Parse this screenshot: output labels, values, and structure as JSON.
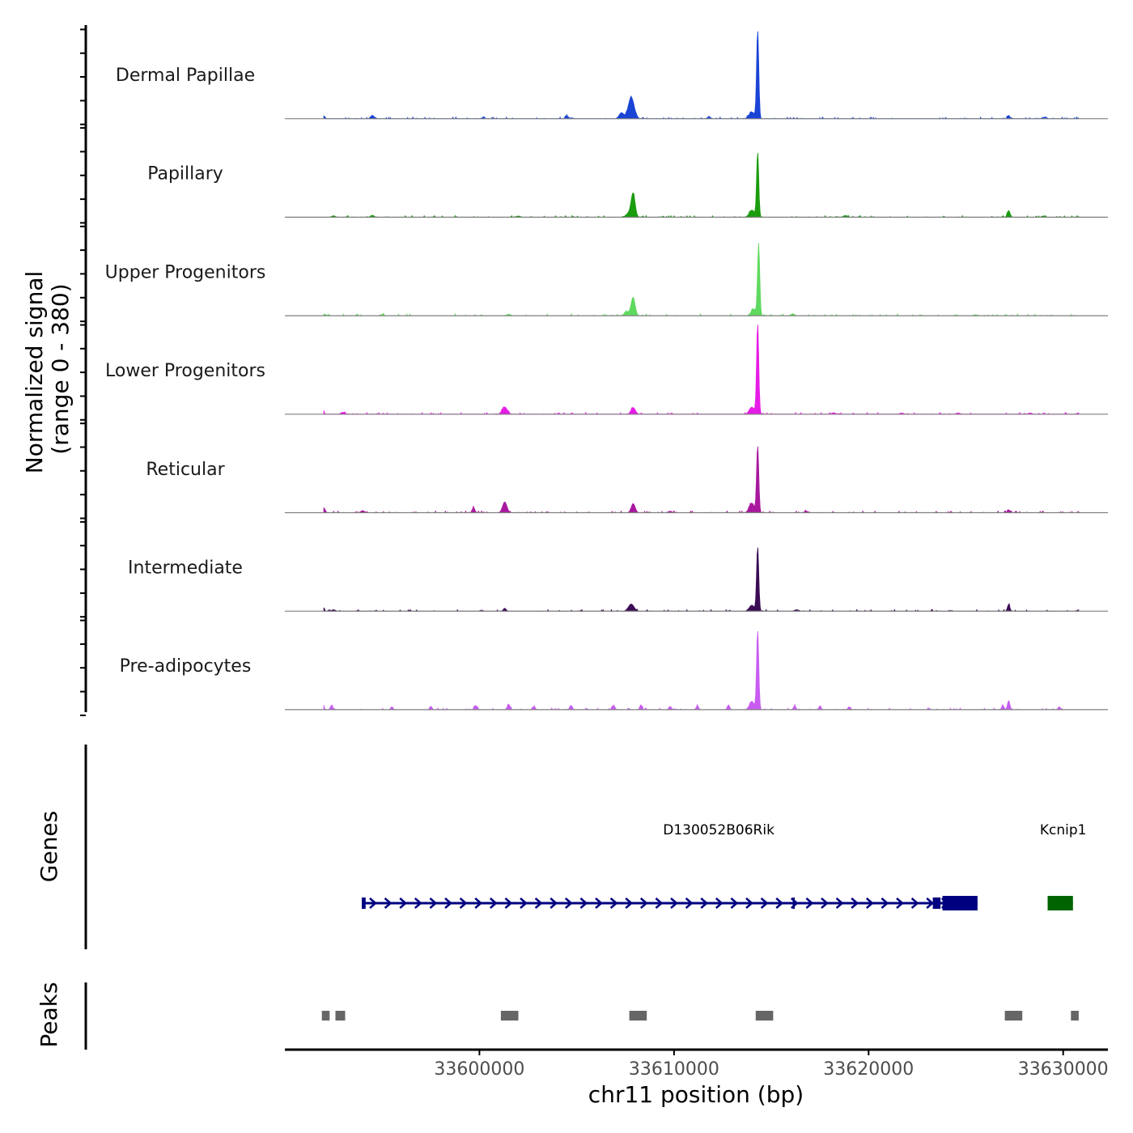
{
  "chart_data": {
    "type": "area",
    "title": "",
    "chromosome": "chr11",
    "xlabel": "chr11 position (bp)",
    "ylabel": "Normalized signal",
    "ylabel_range": "(range 0 - 380)",
    "xlim": [
      33590000,
      33632300
    ],
    "ylim": [
      0,
      380
    ],
    "x_ticks": [
      33600000,
      33610000,
      33620000,
      33630000
    ],
    "x_tick_labels": [
      "33600000",
      "33610000",
      "33620000",
      "33630000"
    ],
    "genes_label": "Genes",
    "peaks_label": "Peaks",
    "series": [
      {
        "name": "Dermal Papillae",
        "color": "#1a44d6",
        "peaks": [
          [
            33592000,
            12,
            60
          ],
          [
            33594500,
            14,
            90
          ],
          [
            33600200,
            6,
            80
          ],
          [
            33604500,
            10,
            90
          ],
          [
            33607800,
            90,
            150
          ],
          [
            33607300,
            25,
            120
          ],
          [
            33611800,
            8,
            80
          ],
          [
            33614300,
            370,
            55
          ],
          [
            33614000,
            28,
            140
          ],
          [
            33627200,
            14,
            60
          ],
          [
            33629000,
            6,
            90
          ]
        ]
      },
      {
        "name": "Papillary",
        "color": "#1a9c0e",
        "peaks": [
          [
            33592500,
            6,
            90
          ],
          [
            33594500,
            8,
            90
          ],
          [
            33602000,
            5,
            100
          ],
          [
            33607900,
            95,
            100
          ],
          [
            33607700,
            18,
            150
          ],
          [
            33614300,
            270,
            55
          ],
          [
            33614000,
            30,
            130
          ],
          [
            33618800,
            7,
            100
          ],
          [
            33627200,
            28,
            70
          ],
          [
            33629000,
            5,
            90
          ]
        ]
      },
      {
        "name": "Upper Progenitors",
        "color": "#5fd95f",
        "peaks": [
          [
            33592000,
            6,
            100
          ],
          [
            33595000,
            5,
            100
          ],
          [
            33601500,
            6,
            100
          ],
          [
            33607900,
            75,
            100
          ],
          [
            33607600,
            15,
            150
          ],
          [
            33614350,
            300,
            55
          ],
          [
            33614100,
            28,
            130
          ],
          [
            33616100,
            8,
            90
          ],
          [
            33625500,
            4,
            100
          ]
        ]
      },
      {
        "name": "Lower Progenitors",
        "color": "#e61be6",
        "peaks": [
          [
            33591950,
            25,
            50
          ],
          [
            33593000,
            8,
            100
          ],
          [
            33601300,
            30,
            130
          ],
          [
            33607900,
            28,
            110
          ],
          [
            33614300,
            380,
            55
          ],
          [
            33614000,
            30,
            130
          ],
          [
            33618200,
            6,
            100
          ],
          [
            33621700,
            5,
            100
          ],
          [
            33624600,
            5,
            100
          ],
          [
            33628300,
            5,
            100
          ],
          [
            33630800,
            5,
            100
          ]
        ]
      },
      {
        "name": "Reticular",
        "color": "#a8189e",
        "peaks": [
          [
            33592000,
            20,
            70
          ],
          [
            33594000,
            8,
            100
          ],
          [
            33599700,
            22,
            60
          ],
          [
            33601300,
            45,
            110
          ],
          [
            33607900,
            38,
            100
          ],
          [
            33609800,
            6,
            100
          ],
          [
            33614300,
            280,
            55
          ],
          [
            33614000,
            40,
            130
          ],
          [
            33616800,
            6,
            100
          ],
          [
            33627200,
            12,
            60
          ],
          [
            33630900,
            5,
            100
          ]
        ]
      },
      {
        "name": "Intermediate",
        "color": "#3a0c54",
        "peaks": [
          [
            33591950,
            22,
            50
          ],
          [
            33592500,
            6,
            90
          ],
          [
            33601300,
            12,
            70
          ],
          [
            33607800,
            30,
            140
          ],
          [
            33614300,
            270,
            55
          ],
          [
            33614000,
            25,
            130
          ],
          [
            33616300,
            6,
            100
          ],
          [
            33627200,
            28,
            60
          ],
          [
            33630800,
            5,
            100
          ]
        ]
      },
      {
        "name": "Pre-adipocytes",
        "color": "#c85cf2",
        "peaks": [
          [
            33591950,
            32,
            50
          ],
          [
            33592400,
            18,
            60
          ],
          [
            33595500,
            12,
            60
          ],
          [
            33597500,
            14,
            60
          ],
          [
            33599800,
            18,
            70
          ],
          [
            33601500,
            22,
            70
          ],
          [
            33602800,
            14,
            60
          ],
          [
            33604700,
            18,
            60
          ],
          [
            33606900,
            18,
            60
          ],
          [
            33608300,
            20,
            60
          ],
          [
            33609800,
            14,
            60
          ],
          [
            33611200,
            16,
            60
          ],
          [
            33612800,
            20,
            60
          ],
          [
            33614300,
            330,
            55
          ],
          [
            33614000,
            35,
            120
          ],
          [
            33616200,
            16,
            60
          ],
          [
            33617500,
            14,
            60
          ],
          [
            33619000,
            12,
            60
          ],
          [
            33627200,
            38,
            60
          ],
          [
            33626900,
            18,
            60
          ],
          [
            33629800,
            12,
            60
          ]
        ]
      }
    ],
    "genes": [
      {
        "name": "D130052B06Rik",
        "start": 33593950,
        "end": 33625600,
        "strand": "+",
        "color": "#000080",
        "exons": [
          [
            33593950,
            33594150
          ],
          [
            33616100,
            33616200
          ],
          [
            33623300,
            33623700
          ],
          [
            33623800,
            33625600
          ]
        ],
        "label_pos": 33612300
      },
      {
        "name": "Kcnip1",
        "start": 33629200,
        "end": 33630500,
        "strand": "+",
        "color": "#006400",
        "exons": [
          [
            33629200,
            33630500
          ]
        ],
        "label_pos": 33630000
      }
    ],
    "peaks": [
      [
        33591900,
        33592300
      ],
      [
        33592600,
        33593100
      ],
      [
        33601100,
        33602000
      ],
      [
        33607700,
        33608600
      ],
      [
        33614200,
        33615100
      ],
      [
        33627000,
        33627900
      ],
      [
        33630400,
        33630800
      ]
    ]
  }
}
